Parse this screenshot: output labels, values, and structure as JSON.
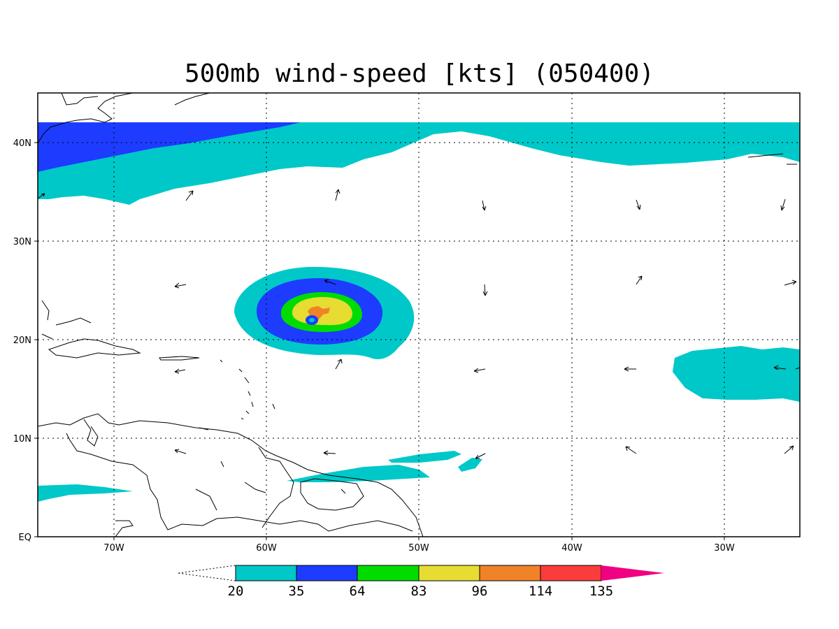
{
  "title": "500mb wind-speed [kts] (050400)",
  "axes": {
    "lon_labels": [
      "70W",
      "60W",
      "50W",
      "40W",
      "30W"
    ],
    "lat_labels": [
      "EQ",
      "10N",
      "20N",
      "30N",
      "40N"
    ]
  },
  "colorbar": {
    "levels": [
      "20",
      "35",
      "64",
      "83",
      "96",
      "114",
      "135"
    ],
    "colors": [
      "#00c8c8",
      "#1e3cff",
      "#00dc00",
      "#e6dc32",
      "#f08228",
      "#fa3c3c",
      "#f00082"
    ]
  },
  "colors": {
    "lt35": "#00c8c8",
    "lt64": "#1e3cff",
    "lt83": "#00dc00",
    "lt96": "#e6dc32",
    "lt114": "#f08228"
  }
}
